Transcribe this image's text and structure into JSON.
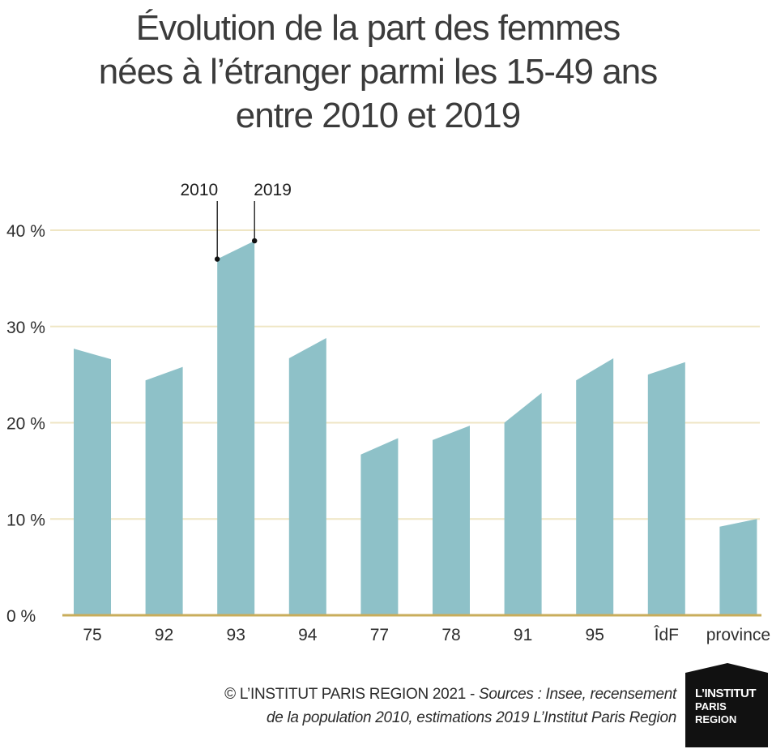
{
  "title_lines": [
    "Évolution de la part des femmes",
    "nées à l’étranger parmi les 15-49 ans",
    "entre 2010 et 2019"
  ],
  "chart_data": {
    "type": "area",
    "title": "Évolution de la part des femmes nées à l’étranger parmi les 15-49 ans entre 2010 et 2019",
    "categories": [
      "75",
      "92",
      "93",
      "94",
      "77",
      "78",
      "91",
      "95",
      "ÎdF",
      "province"
    ],
    "series": [
      {
        "name": "2010",
        "values": [
          27.7,
          24.4,
          37.0,
          26.7,
          16.7,
          18.2,
          20.0,
          24.4,
          25.0,
          9.2
        ]
      },
      {
        "name": "2019",
        "values": [
          26.6,
          25.8,
          38.9,
          28.8,
          18.4,
          19.7,
          23.1,
          26.7,
          26.3,
          10.0
        ]
      }
    ],
    "y_ticks": [
      "0 %",
      "10 %",
      "20 %",
      "30 %",
      "40 %"
    ],
    "ylim": [
      0,
      40
    ],
    "grid": true,
    "annotations": [
      "2010",
      "2019"
    ],
    "colors": {
      "bar": "#8ec1c8",
      "grid": "#efe6c4",
      "axis": "#c9ad5b"
    }
  },
  "footer": {
    "credit": "© L’INSTITUT PARIS REGION 2021 - ",
    "sources_line1": "Sources : Insee, recensement",
    "sources_line2": "de la population 2010, estimations 2019 L’Institut Paris Region"
  },
  "logo": {
    "line1": "L’INSTITUT",
    "line2": "PARIS",
    "line3": "REGION"
  }
}
